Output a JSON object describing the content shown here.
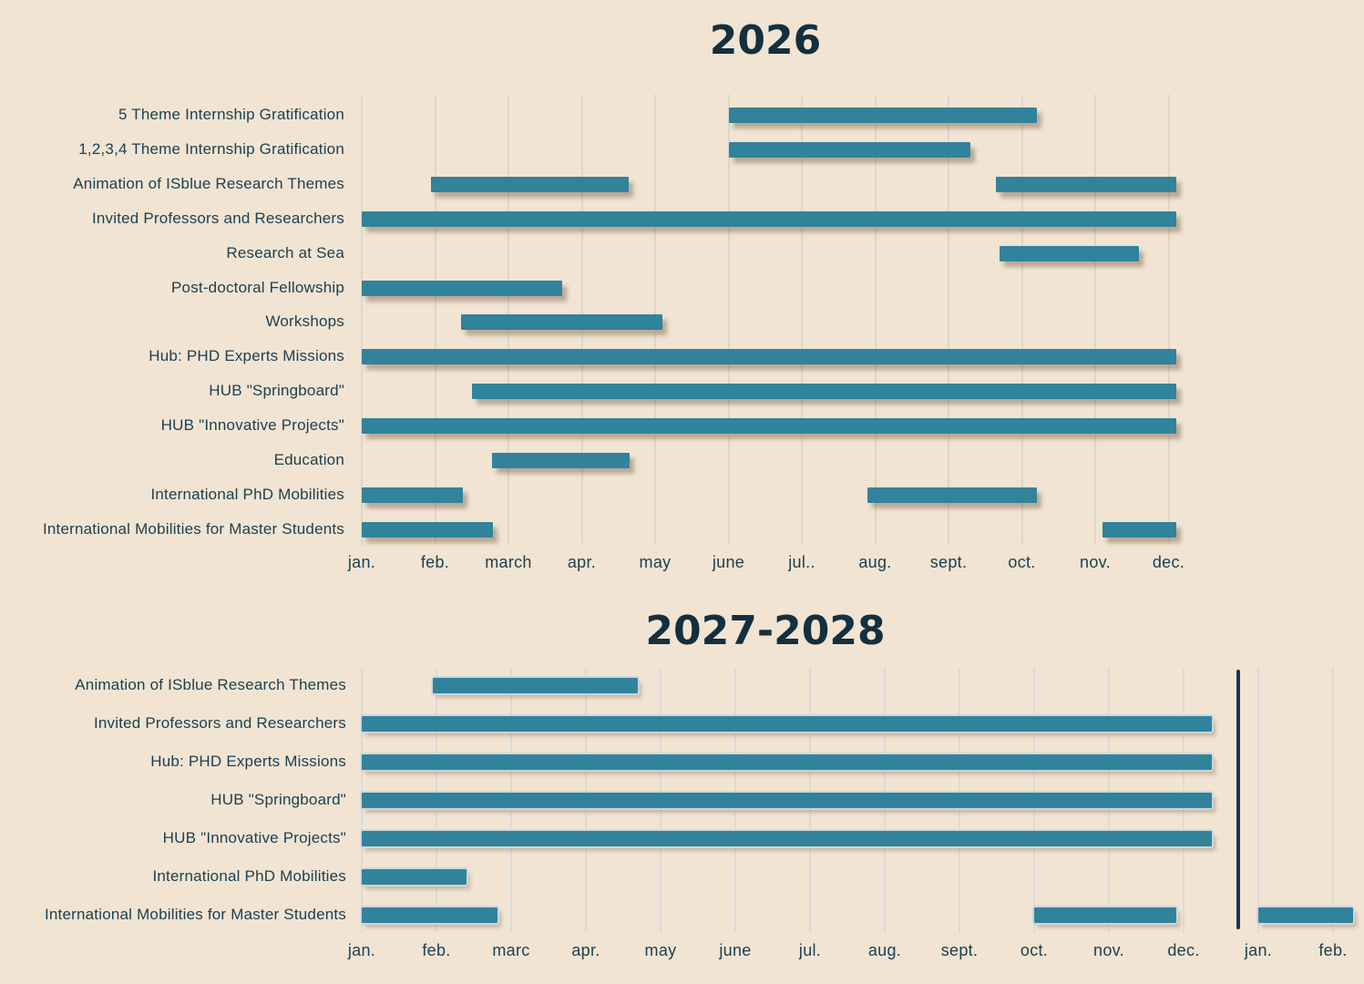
{
  "palette": {
    "background": "#f1e4d3",
    "bar": "#31839b",
    "text": "#1c4051",
    "title": "#142f3d",
    "grid_top_chart": "#ded6c8",
    "grid_bottom_chart": "#d9dbe1",
    "year_divider": "#1a3850"
  },
  "chart_data": [
    {
      "type": "bar",
      "subtype": "gantt",
      "title": "2026",
      "x_unit": "months of 2026, 0 = start of january, bars span [start,end]",
      "xlim": [
        0,
        11.1
      ],
      "grid": true,
      "legend": "none",
      "categories": [
        "jan.",
        "feb.",
        "march",
        "apr.",
        "may",
        "june",
        "jul..",
        "aug.",
        "sept.",
        "oct.",
        "nov.",
        "dec."
      ],
      "rows": [
        {
          "label": "5 Theme Internship Gratification",
          "bars": [
            [
              5.0,
              9.2
            ]
          ]
        },
        {
          "label": "1,2,3,4 Theme Internship Gratification",
          "bars": [
            [
              5.0,
              8.3
            ]
          ]
        },
        {
          "label": "Animation of ISblue Research Themes",
          "bars": [
            [
              0.95,
              3.64
            ],
            [
              8.65,
              11.1
            ]
          ]
        },
        {
          "label": "Invited Professors and Researchers",
          "bars": [
            [
              0,
              11.1
            ]
          ]
        },
        {
          "label": "Research at Sea",
          "bars": [
            [
              8.7,
              10.6
            ]
          ]
        },
        {
          "label": "Post-doctoral Fellowship",
          "bars": [
            [
              0,
              2.73
            ]
          ]
        },
        {
          "label": "Workshops",
          "bars": [
            [
              1.35,
              4.1
            ]
          ]
        },
        {
          "label": "Hub: PHD Experts Missions",
          "bars": [
            [
              0,
              11.1
            ]
          ]
        },
        {
          "label": "HUB \"Springboard\"",
          "bars": [
            [
              1.5,
              11.1
            ]
          ]
        },
        {
          "label": "HUB \"Innovative Projects\"",
          "bars": [
            [
              0,
              11.1
            ]
          ]
        },
        {
          "label": "Education",
          "bars": [
            [
              1.78,
              3.65
            ]
          ]
        },
        {
          "label": "International PhD Mobilities",
          "bars": [
            [
              0,
              1.38
            ],
            [
              6.9,
              9.2
            ]
          ]
        },
        {
          "label": "International Mobilities for Master Students",
          "bars": [
            [
              0,
              1.79
            ],
            [
              10.1,
              11.1
            ]
          ]
        }
      ]
    },
    {
      "type": "bar",
      "subtype": "gantt",
      "title": "2027-2028",
      "x_unit": "months jan 2027 - feb 2028, 0 = start of jan 2027, bars span [start,end]",
      "xlim": [
        0,
        13.3
      ],
      "grid": true,
      "legend": "none",
      "year_divider_x": 11.73,
      "categories": [
        "jan.",
        "feb.",
        "marc",
        "apr.",
        "may",
        "june",
        "jul.",
        "aug.",
        "sept.",
        "oct.",
        "nov.",
        "dec.",
        "jan.",
        "feb."
      ],
      "rows": [
        {
          "label": "Animation of ISblue Research Themes",
          "bars": [
            [
              0.95,
              3.7
            ]
          ]
        },
        {
          "label": "Invited Professors and Researchers",
          "bars": [
            [
              0,
              11.38
            ]
          ]
        },
        {
          "label": "Hub: PHD Experts Missions",
          "bars": [
            [
              0,
              11.38
            ]
          ]
        },
        {
          "label": "HUB \"Springboard\"",
          "bars": [
            [
              0,
              11.38
            ]
          ]
        },
        {
          "label": "HUB \"Innovative Projects\"",
          "bars": [
            [
              0,
              11.38
            ]
          ]
        },
        {
          "label": "International PhD Mobilities",
          "bars": [
            [
              0,
              1.4
            ]
          ]
        },
        {
          "label": "International Mobilities for Master Students",
          "bars": [
            [
              0,
              1.82
            ],
            [
              9.0,
              10.9
            ],
            [
              12.0,
              13.27
            ]
          ]
        }
      ]
    }
  ]
}
